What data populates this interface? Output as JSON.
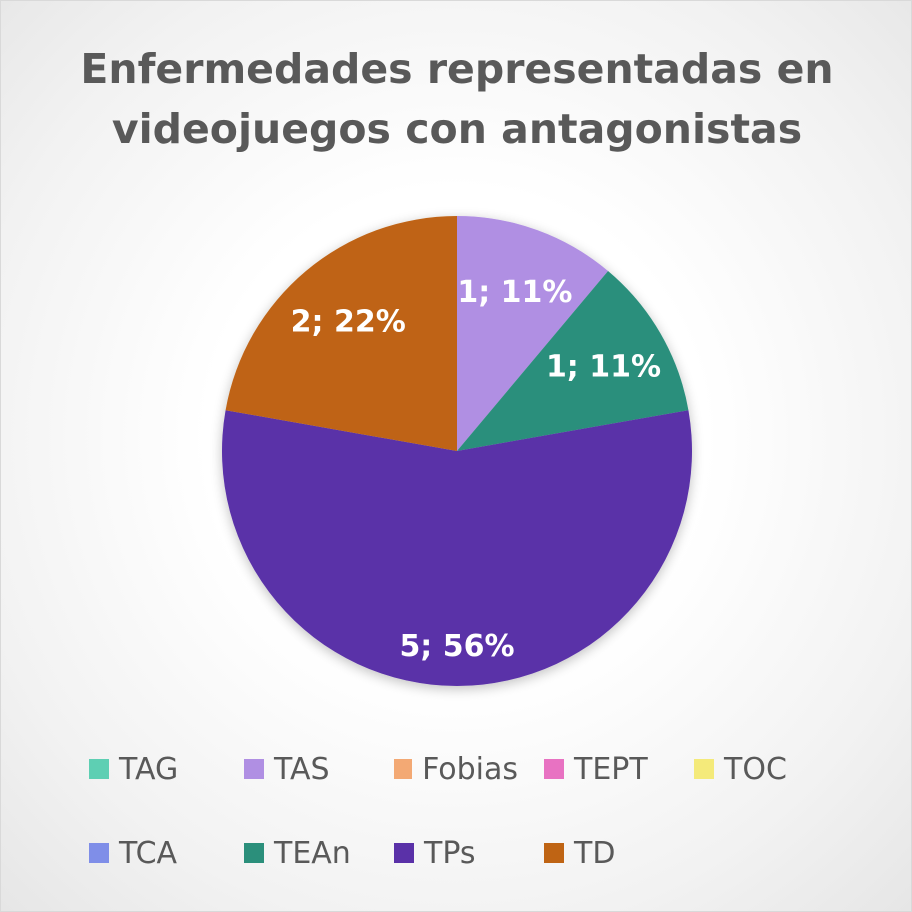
{
  "chart_data": {
    "type": "pie",
    "title": "Enfermedades representadas en videojuegos con antagonistas",
    "categories": [
      "TAG",
      "TAS",
      "Fobias",
      "TEPT",
      "TOC",
      "TCA",
      "TEAn",
      "TPs",
      "TD"
    ],
    "values": [
      0,
      1,
      0,
      0,
      0,
      0,
      1,
      5,
      2
    ],
    "data_labels": [
      "",
      "1; 11%",
      "",
      "",
      "",
      "",
      "1; 11%",
      "5; 56%",
      "2; 22%"
    ],
    "colors": [
      "#5ecfb3",
      "#b08fe3",
      "#f3a974",
      "#e872c2",
      "#f4ea7a",
      "#7f8ee8",
      "#2b8f7b",
      "#5a31a8",
      "#bf6414"
    ],
    "legend_position": "bottom"
  }
}
